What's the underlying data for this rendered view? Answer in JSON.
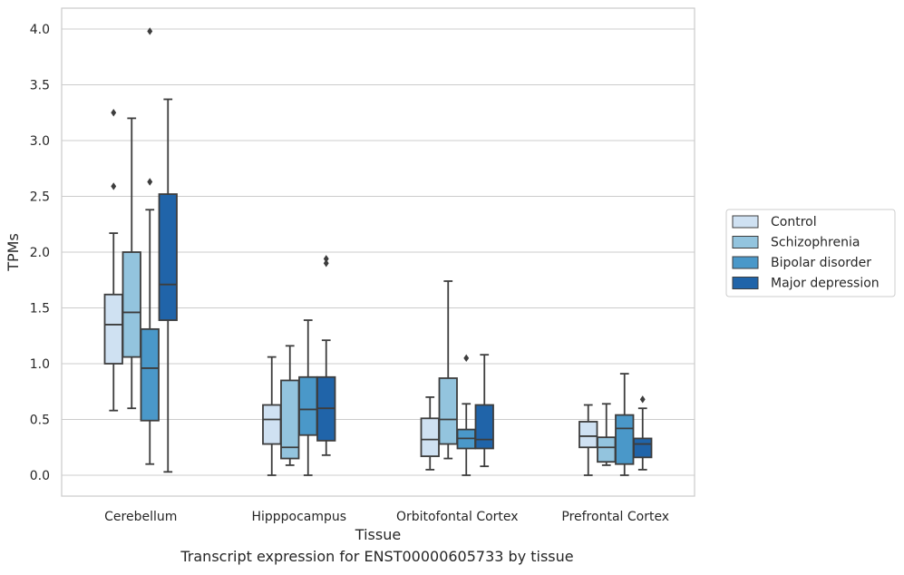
{
  "caption": "Transcript expression for ENST00000605733 by tissue",
  "chart_data": {
    "type": "box",
    "xlabel": "Tissue",
    "ylabel": "TPMs",
    "ylim": [
      -0.19,
      4.19
    ],
    "yticks": [
      0.0,
      0.5,
      1.0,
      1.5,
      2.0,
      2.5,
      3.0,
      3.5,
      4.0
    ],
    "ytick_labels": [
      "0.0",
      "0.5",
      "1.0",
      "1.5",
      "2.0",
      "2.5",
      "3.0",
      "3.5",
      "4.0"
    ],
    "grid": "horizontal",
    "legend_position": "right",
    "categories": [
      "Cerebellum",
      "Hipppocampus",
      "Orbitofontal Cortex",
      "Prefrontal Cortex"
    ],
    "series": [
      {
        "name": "Control",
        "color": "#cfe1f2",
        "boxes": [
          {
            "whisker_low": 0.58,
            "q1": 1.0,
            "median": 1.35,
            "q3": 1.62,
            "whisker_high": 2.17,
            "outliers": [
              2.59,
              3.25
            ]
          },
          {
            "whisker_low": 0.0,
            "q1": 0.28,
            "median": 0.5,
            "q3": 0.63,
            "whisker_high": 1.06,
            "outliers": []
          },
          {
            "whisker_low": 0.05,
            "q1": 0.17,
            "median": 0.32,
            "q3": 0.51,
            "whisker_high": 0.7,
            "outliers": []
          },
          {
            "whisker_low": 0.0,
            "q1": 0.25,
            "median": 0.35,
            "q3": 0.48,
            "whisker_high": 0.63,
            "outliers": []
          }
        ]
      },
      {
        "name": "Schizophrenia",
        "color": "#93c4de",
        "boxes": [
          {
            "whisker_low": 0.6,
            "q1": 1.06,
            "median": 1.46,
            "q3": 2.0,
            "whisker_high": 3.2,
            "outliers": []
          },
          {
            "whisker_low": 0.09,
            "q1": 0.15,
            "median": 0.25,
            "q3": 0.85,
            "whisker_high": 1.16,
            "outliers": []
          },
          {
            "whisker_low": 0.15,
            "q1": 0.28,
            "median": 0.5,
            "q3": 0.87,
            "whisker_high": 1.74,
            "outliers": []
          },
          {
            "whisker_low": 0.09,
            "q1": 0.12,
            "median": 0.25,
            "q3": 0.34,
            "whisker_high": 0.64,
            "outliers": []
          }
        ]
      },
      {
        "name": "Bipolar disorder",
        "color": "#4a98c9",
        "boxes": [
          {
            "whisker_low": 0.1,
            "q1": 0.49,
            "median": 0.96,
            "q3": 1.31,
            "whisker_high": 2.38,
            "outliers": [
              2.63,
              3.98
            ]
          },
          {
            "whisker_low": 0.0,
            "q1": 0.36,
            "median": 0.59,
            "q3": 0.88,
            "whisker_high": 1.39,
            "outliers": []
          },
          {
            "whisker_low": 0.0,
            "q1": 0.24,
            "median": 0.33,
            "q3": 0.41,
            "whisker_high": 0.64,
            "outliers": [
              1.05
            ]
          },
          {
            "whisker_low": 0.0,
            "q1": 0.1,
            "median": 0.42,
            "q3": 0.54,
            "whisker_high": 0.91,
            "outliers": []
          }
        ]
      },
      {
        "name": "Major depression",
        "color": "#2064a9",
        "boxes": [
          {
            "whisker_low": 0.03,
            "q1": 1.39,
            "median": 1.71,
            "q3": 2.52,
            "whisker_high": 3.37,
            "outliers": []
          },
          {
            "whisker_low": 0.18,
            "q1": 0.31,
            "median": 0.6,
            "q3": 0.88,
            "whisker_high": 1.21,
            "outliers": [
              1.9,
              1.94
            ]
          },
          {
            "whisker_low": 0.08,
            "q1": 0.24,
            "median": 0.32,
            "q3": 0.63,
            "whisker_high": 1.08,
            "outliers": []
          },
          {
            "whisker_low": 0.05,
            "q1": 0.16,
            "median": 0.28,
            "q3": 0.33,
            "whisker_high": 0.6,
            "outliers": [
              0.68
            ]
          }
        ]
      }
    ]
  }
}
